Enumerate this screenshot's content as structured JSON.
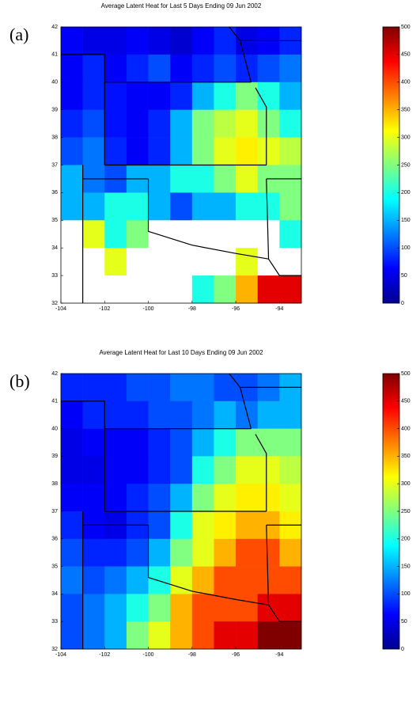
{
  "chart_data": [
    {
      "type": "heatmap",
      "panel_label": "(a)",
      "title": "Average Latent Heat for Last 5 Days Ending 09 Jun 2002",
      "xlim": [
        -104,
        -93
      ],
      "ylim": [
        32,
        42
      ],
      "xticks": [
        -104,
        -102,
        -100,
        -98,
        -96,
        -94
      ],
      "yticks": [
        32,
        33,
        34,
        35,
        36,
        37,
        38,
        39,
        40,
        41,
        42
      ],
      "clim": [
        0,
        500
      ],
      "cticks": [
        0,
        50,
        100,
        150,
        200,
        250,
        300,
        350,
        400,
        450,
        500
      ],
      "colormap": "jet",
      "x": [
        -103.5,
        -102.5,
        -101.5,
        -100.5,
        -99.5,
        -98.5,
        -97.5,
        -96.5,
        -95.5,
        -94.5,
        -93.5
      ],
      "y": [
        41.5,
        40.5,
        39.5,
        38.5,
        37.5,
        36.5,
        35.5,
        34.5,
        33.5,
        32.5
      ],
      "z": [
        [
          60,
          50,
          50,
          60,
          50,
          40,
          60,
          80,
          50,
          60,
          80
        ],
        [
          60,
          80,
          60,
          80,
          100,
          60,
          80,
          100,
          80,
          100,
          120
        ],
        [
          60,
          80,
          70,
          60,
          60,
          80,
          150,
          200,
          250,
          200,
          150
        ],
        [
          80,
          100,
          70,
          60,
          80,
          150,
          250,
          280,
          300,
          250,
          200
        ],
        [
          100,
          120,
          80,
          60,
          80,
          150,
          250,
          300,
          320,
          300,
          280
        ],
        [
          150,
          120,
          100,
          150,
          150,
          200,
          200,
          250,
          300,
          250,
          250
        ],
        [
          150,
          150,
          200,
          200,
          150,
          100,
          150,
          150,
          200,
          200,
          250
        ],
        [
          null,
          300,
          200,
          250,
          null,
          null,
          null,
          null,
          null,
          null,
          200
        ],
        [
          null,
          null,
          300,
          null,
          null,
          null,
          null,
          null,
          300,
          null,
          null
        ],
        [
          null,
          null,
          null,
          null,
          null,
          null,
          200,
          250,
          350,
          450,
          450
        ]
      ]
    },
    {
      "type": "heatmap",
      "panel_label": "(b)",
      "title": "Average Latent Heat for Last 10 Days Ending 09 Jun 2002",
      "xlim": [
        -104,
        -93
      ],
      "ylim": [
        32,
        42
      ],
      "xticks": [
        -104,
        -102,
        -100,
        -98,
        -96,
        -94
      ],
      "yticks": [
        32,
        33,
        34,
        35,
        36,
        37,
        38,
        39,
        40,
        41,
        42
      ],
      "clim": [
        0,
        500
      ],
      "cticks": [
        0,
        50,
        100,
        150,
        200,
        250,
        300,
        350,
        400,
        450,
        500
      ],
      "colormap": "jet",
      "x": [
        -103.5,
        -102.5,
        -101.5,
        -100.5,
        -99.5,
        -98.5,
        -97.5,
        -96.5,
        -95.5,
        -94.5,
        -93.5
      ],
      "y": [
        41.5,
        40.5,
        39.5,
        38.5,
        37.5,
        36.5,
        35.5,
        34.5,
        33.5,
        32.5
      ],
      "z": [
        [
          80,
          80,
          80,
          100,
          100,
          120,
          120,
          100,
          100,
          120,
          150
        ],
        [
          60,
          80,
          80,
          80,
          100,
          100,
          120,
          150,
          120,
          150,
          150
        ],
        [
          50,
          60,
          60,
          60,
          80,
          100,
          150,
          200,
          250,
          250,
          250
        ],
        [
          50,
          50,
          60,
          60,
          80,
          100,
          200,
          250,
          300,
          300,
          280
        ],
        [
          60,
          60,
          60,
          80,
          100,
          150,
          250,
          300,
          320,
          320,
          300
        ],
        [
          80,
          60,
          50,
          80,
          100,
          200,
          300,
          320,
          350,
          350,
          320
        ],
        [
          100,
          80,
          80,
          100,
          150,
          250,
          300,
          350,
          400,
          400,
          350
        ],
        [
          120,
          100,
          120,
          150,
          200,
          300,
          350,
          400,
          400,
          400,
          400
        ],
        [
          100,
          120,
          150,
          200,
          250,
          350,
          400,
          400,
          400,
          450,
          450
        ],
        [
          100,
          120,
          150,
          250,
          300,
          350,
          400,
          450,
          450,
          500,
          500
        ]
      ]
    }
  ]
}
